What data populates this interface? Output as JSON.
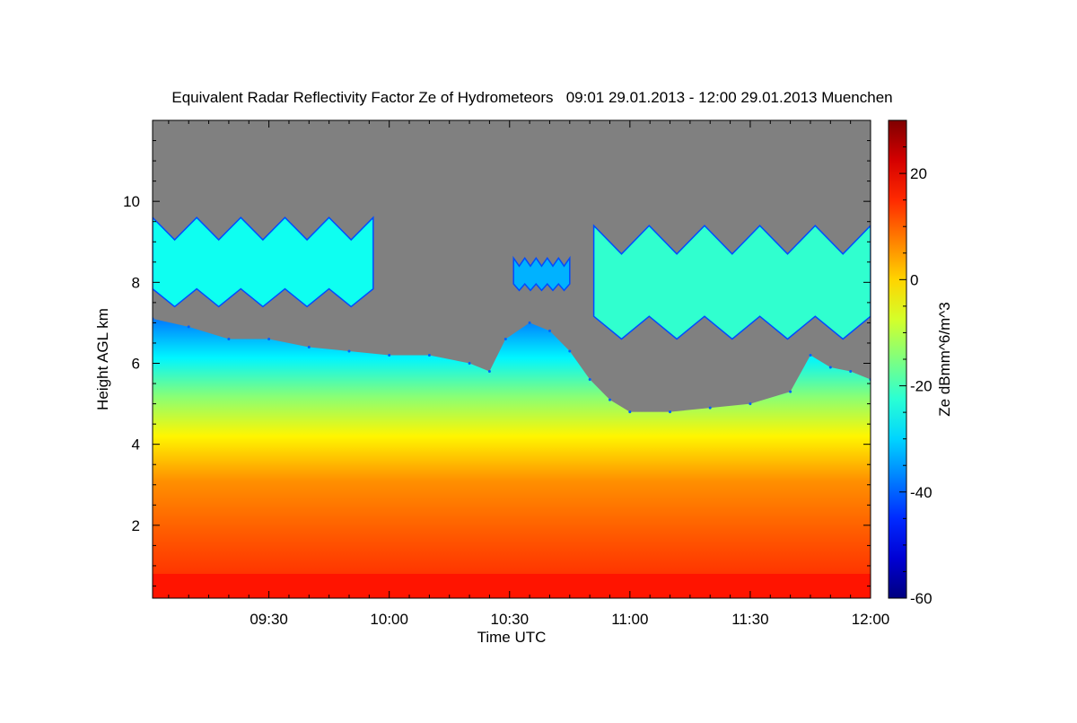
{
  "chart_data": {
    "type": "heatmap",
    "title": "Equivalent Radar Reflectivity Factor Ze of Hydrometeors   09:01 29.01.2013 - 12:00 29.01.2013 Muenchen",
    "xlabel": "Time UTC",
    "ylabel": "Height AGL km",
    "colorbar_label": "Ze dBmm^6/m^3",
    "x_range_minutes_utc": [
      541,
      720
    ],
    "x_ticks": [
      {
        "minute": 570,
        "label": "09:30"
      },
      {
        "minute": 600,
        "label": "10:00"
      },
      {
        "minute": 630,
        "label": "10:30"
      },
      {
        "minute": 660,
        "label": "11:00"
      },
      {
        "minute": 690,
        "label": "11:30"
      },
      {
        "minute": 720,
        "label": "12:00"
      }
    ],
    "ylim": [
      0.2,
      12
    ],
    "y_ticks": [
      {
        "value": 2,
        "label": "2"
      },
      {
        "value": 4,
        "label": "4"
      },
      {
        "value": 6,
        "label": "6"
      },
      {
        "value": 8,
        "label": "8"
      },
      {
        "value": 10,
        "label": "10"
      }
    ],
    "clim": [
      -60,
      30
    ],
    "colorbar_ticks": [
      {
        "value": -60,
        "label": "-60"
      },
      {
        "value": -40,
        "label": "-40"
      },
      {
        "value": -20,
        "label": "-20"
      },
      {
        "value": 0,
        "label": "0"
      },
      {
        "value": 20,
        "label": "20"
      }
    ],
    "background_color": "#808080",
    "colormap": [
      "#00007f",
      "#0000ff",
      "#007fff",
      "#00ffff",
      "#7fff7f",
      "#ffff00",
      "#ff7f00",
      "#ff0000",
      "#7f0000"
    ],
    "echo_top_km": [
      {
        "minute": 541,
        "km": 7.1
      },
      {
        "minute": 550,
        "km": 6.9
      },
      {
        "minute": 560,
        "km": 6.6
      },
      {
        "minute": 570,
        "km": 6.6
      },
      {
        "minute": 580,
        "km": 6.4
      },
      {
        "minute": 590,
        "km": 6.3
      },
      {
        "minute": 600,
        "km": 6.2
      },
      {
        "minute": 610,
        "km": 6.2
      },
      {
        "minute": 620,
        "km": 6.0
      },
      {
        "minute": 625,
        "km": 5.8
      },
      {
        "minute": 629,
        "km": 6.6
      },
      {
        "minute": 635,
        "km": 7.0
      },
      {
        "minute": 640,
        "km": 6.8
      },
      {
        "minute": 645,
        "km": 6.3
      },
      {
        "minute": 650,
        "km": 5.6
      },
      {
        "minute": 655,
        "km": 5.1
      },
      {
        "minute": 660,
        "km": 4.8
      },
      {
        "minute": 670,
        "km": 4.8
      },
      {
        "minute": 680,
        "km": 4.9
      },
      {
        "minute": 690,
        "km": 5.0
      },
      {
        "minute": 700,
        "km": 5.3
      },
      {
        "minute": 705,
        "km": 6.2
      },
      {
        "minute": 710,
        "km": 5.9
      },
      {
        "minute": 715,
        "km": 5.8
      },
      {
        "minute": 720,
        "km": 5.6
      }
    ],
    "upper_cloud_layers": [
      {
        "start_minute": 541,
        "end_minute": 596,
        "bottom_km": 7.4,
        "top_km": 9.6,
        "ze_dbz": -25
      },
      {
        "start_minute": 631,
        "end_minute": 645,
        "bottom_km": 7.8,
        "top_km": 8.6,
        "ze_dbz": -33
      },
      {
        "start_minute": 651,
        "end_minute": 720,
        "bottom_km": 6.6,
        "top_km": 9.4,
        "ze_dbz": -22
      }
    ],
    "surface_layer": {
      "bottom_km": 0.2,
      "top_km": 0.8,
      "ze_dbz": 17
    }
  }
}
